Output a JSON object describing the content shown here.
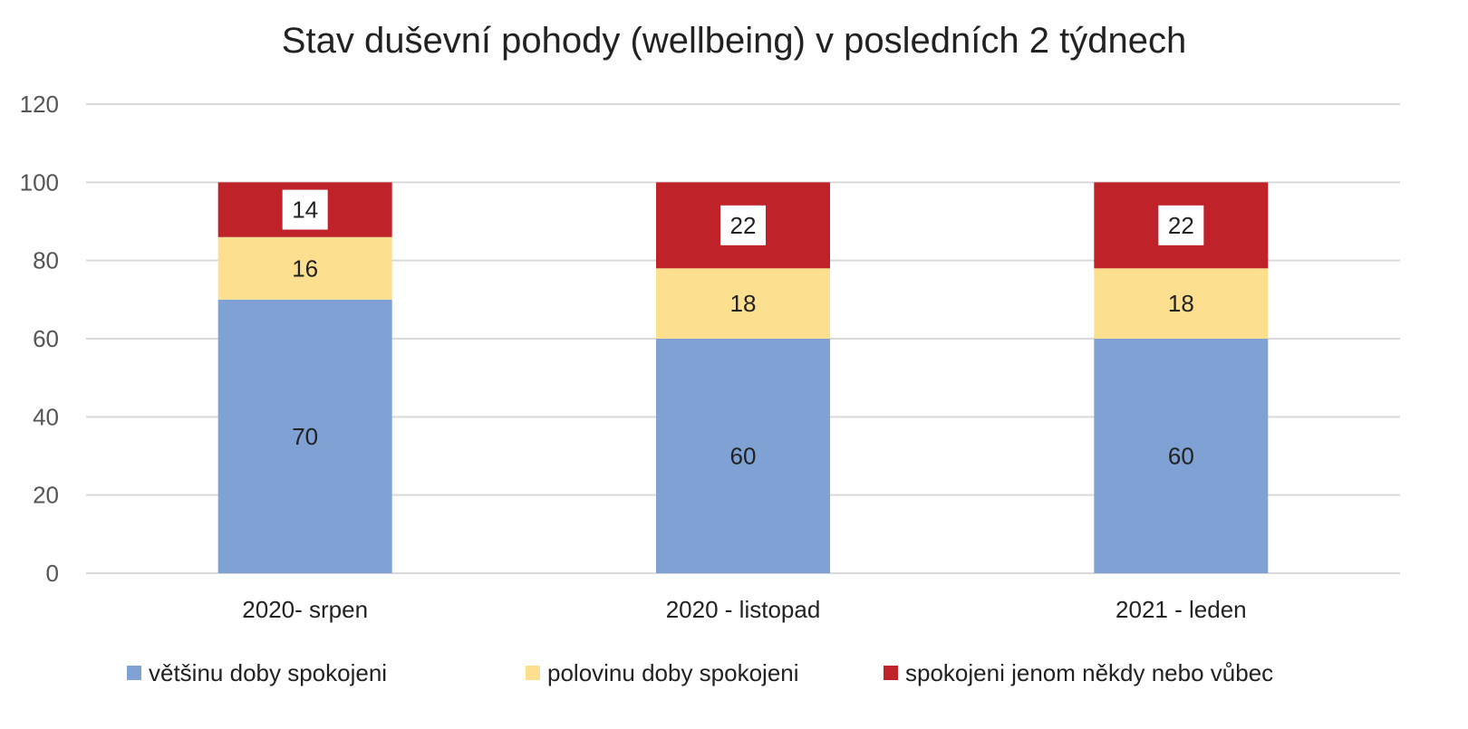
{
  "chart_data": {
    "type": "bar",
    "stacked": true,
    "title": "Stav duševní pohody (wellbeing) v posledních 2 týdnech",
    "categories": [
      "2020- srpen",
      "2020 - listopad",
      "2021 - leden"
    ],
    "series": [
      {
        "name": "většinu doby spokojeni",
        "values": [
          70,
          60,
          60
        ],
        "color": "#7fa1d4"
      },
      {
        "name": "polovinu doby spokojeni",
        "values": [
          16,
          18,
          18
        ],
        "color": "#fde08f"
      },
      {
        "name": "spokojeni jenom někdy nebo vůbec",
        "values": [
          14,
          22,
          22
        ],
        "color": "#c0222a"
      }
    ],
    "ylim": [
      0,
      120
    ],
    "yticks": [
      0,
      20,
      40,
      60,
      80,
      100,
      120
    ],
    "grid": true,
    "legend": "bottom",
    "gridColor": "#d9d9d9"
  }
}
